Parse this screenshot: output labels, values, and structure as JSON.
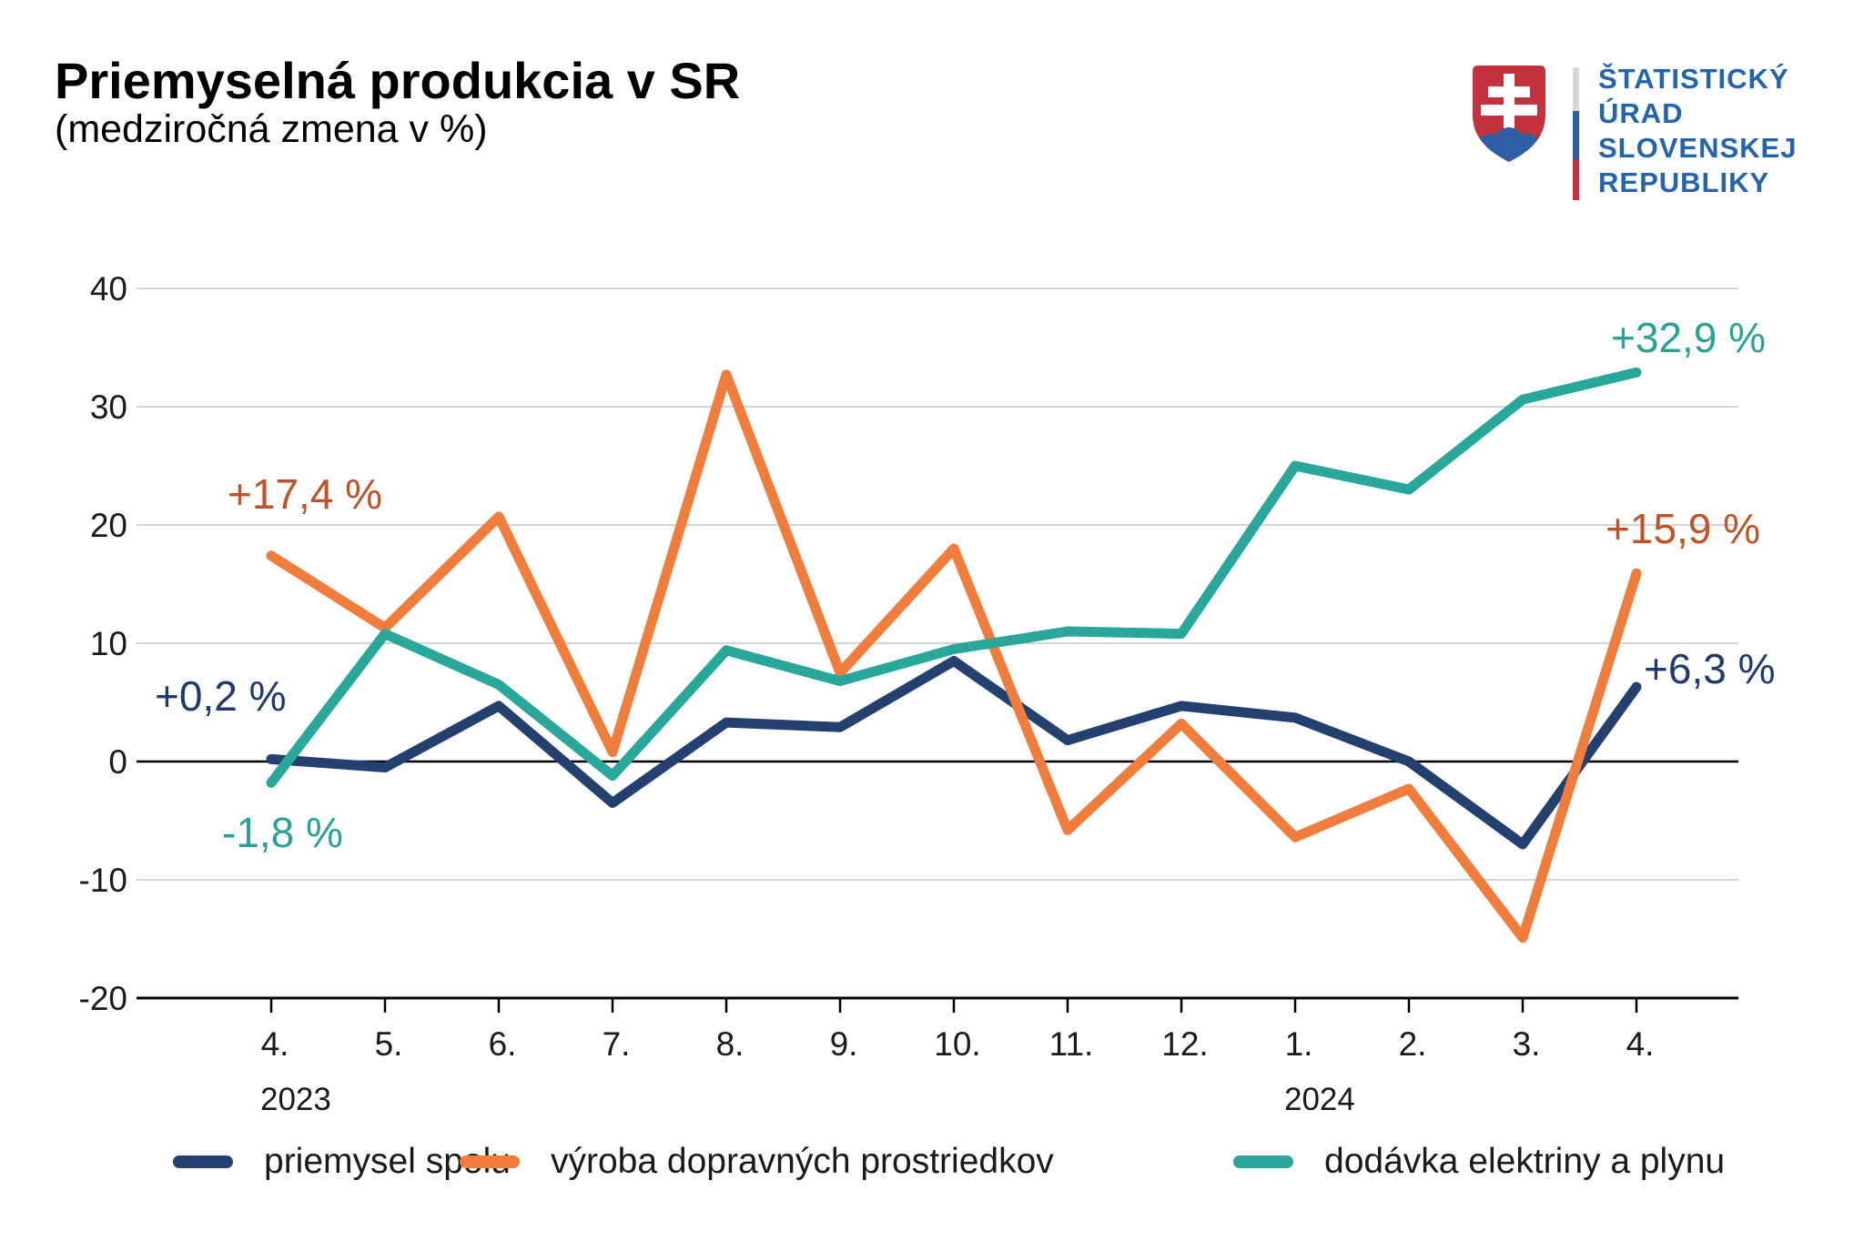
{
  "header": {
    "title": "Priemyselná produkcia v SR",
    "subtitle": "(medziročná zmena v %)",
    "logo": {
      "line1": "ŠTATISTICKÝ",
      "line2": "ÚRAD",
      "line3": "SLOVENSKEJ",
      "line4": "REPUBLIKY",
      "text_color": "#2264ae",
      "shield_red": "#c4323e",
      "shield_blue": "#2e5fa5",
      "shield_white": "#ffffff",
      "bar_gray": "#d5d8da",
      "bar_blue": "#2e5fa5",
      "bar_red": "#c4323e"
    }
  },
  "chart_data": {
    "type": "line",
    "title": "Priemyselná produkcia v SR (medziročná zmena v %)",
    "x_labels": [
      "4.",
      "5.",
      "6.",
      "7.",
      "8.",
      "9.",
      "10.",
      "11.",
      "12.",
      "1.",
      "2.",
      "3.",
      "4."
    ],
    "year_labels": [
      {
        "text": "2023",
        "tick_index": 0
      },
      {
        "text": "2024",
        "tick_index": 9
      }
    ],
    "y_ticks": [
      40,
      30,
      20,
      10,
      0,
      -10,
      -20
    ],
    "ylim": [
      -20,
      40
    ],
    "grid": true,
    "grid_color": "#c6c6c6",
    "axis_color": "#000000",
    "legend_position": "bottom",
    "series": [
      {
        "name": "priemysel spolu",
        "color": "#23406f",
        "values": [
          0.2,
          -0.5,
          4.7,
          -3.5,
          3.3,
          2.9,
          8.5,
          1.8,
          4.7,
          3.7,
          0.0,
          -7.0,
          6.3
        ]
      },
      {
        "name": "výroba dopravných prostriedkov",
        "color": "#f07d3c",
        "values": [
          17.4,
          11.3,
          20.7,
          0.8,
          32.7,
          7.5,
          18.0,
          -5.8,
          3.2,
          -6.4,
          -2.3,
          -14.9,
          15.9
        ]
      },
      {
        "name": "dodávka elektriny a plynu",
        "color": "#29a79a",
        "values": [
          -1.8,
          10.8,
          6.5,
          -1.2,
          9.4,
          6.8,
          9.5,
          11.0,
          10.8,
          25.0,
          23.0,
          30.6,
          32.9
        ]
      }
    ],
    "annotations": [
      {
        "text": "+0,2 %",
        "color": "#1f3a6e",
        "series": "priemysel spolu",
        "point": "first"
      },
      {
        "text": "+17,4 %",
        "color": "#c05228",
        "series": "výroba dopravných prostriedkov",
        "point": "first"
      },
      {
        "text": "-1,8 %",
        "color": "#2aa396",
        "series": "dodávka elektriny a plynu",
        "point": "first"
      },
      {
        "text": "+6,3 %",
        "color": "#1f3a6e",
        "series": "priemysel spolu",
        "point": "last"
      },
      {
        "text": "+15,9 %",
        "color": "#c05228",
        "series": "výroba dopravných prostriedkov",
        "point": "last"
      },
      {
        "text": "+32,9 %",
        "color": "#2aa396",
        "series": "dodávka elektriny a plynu",
        "point": "last"
      }
    ]
  }
}
